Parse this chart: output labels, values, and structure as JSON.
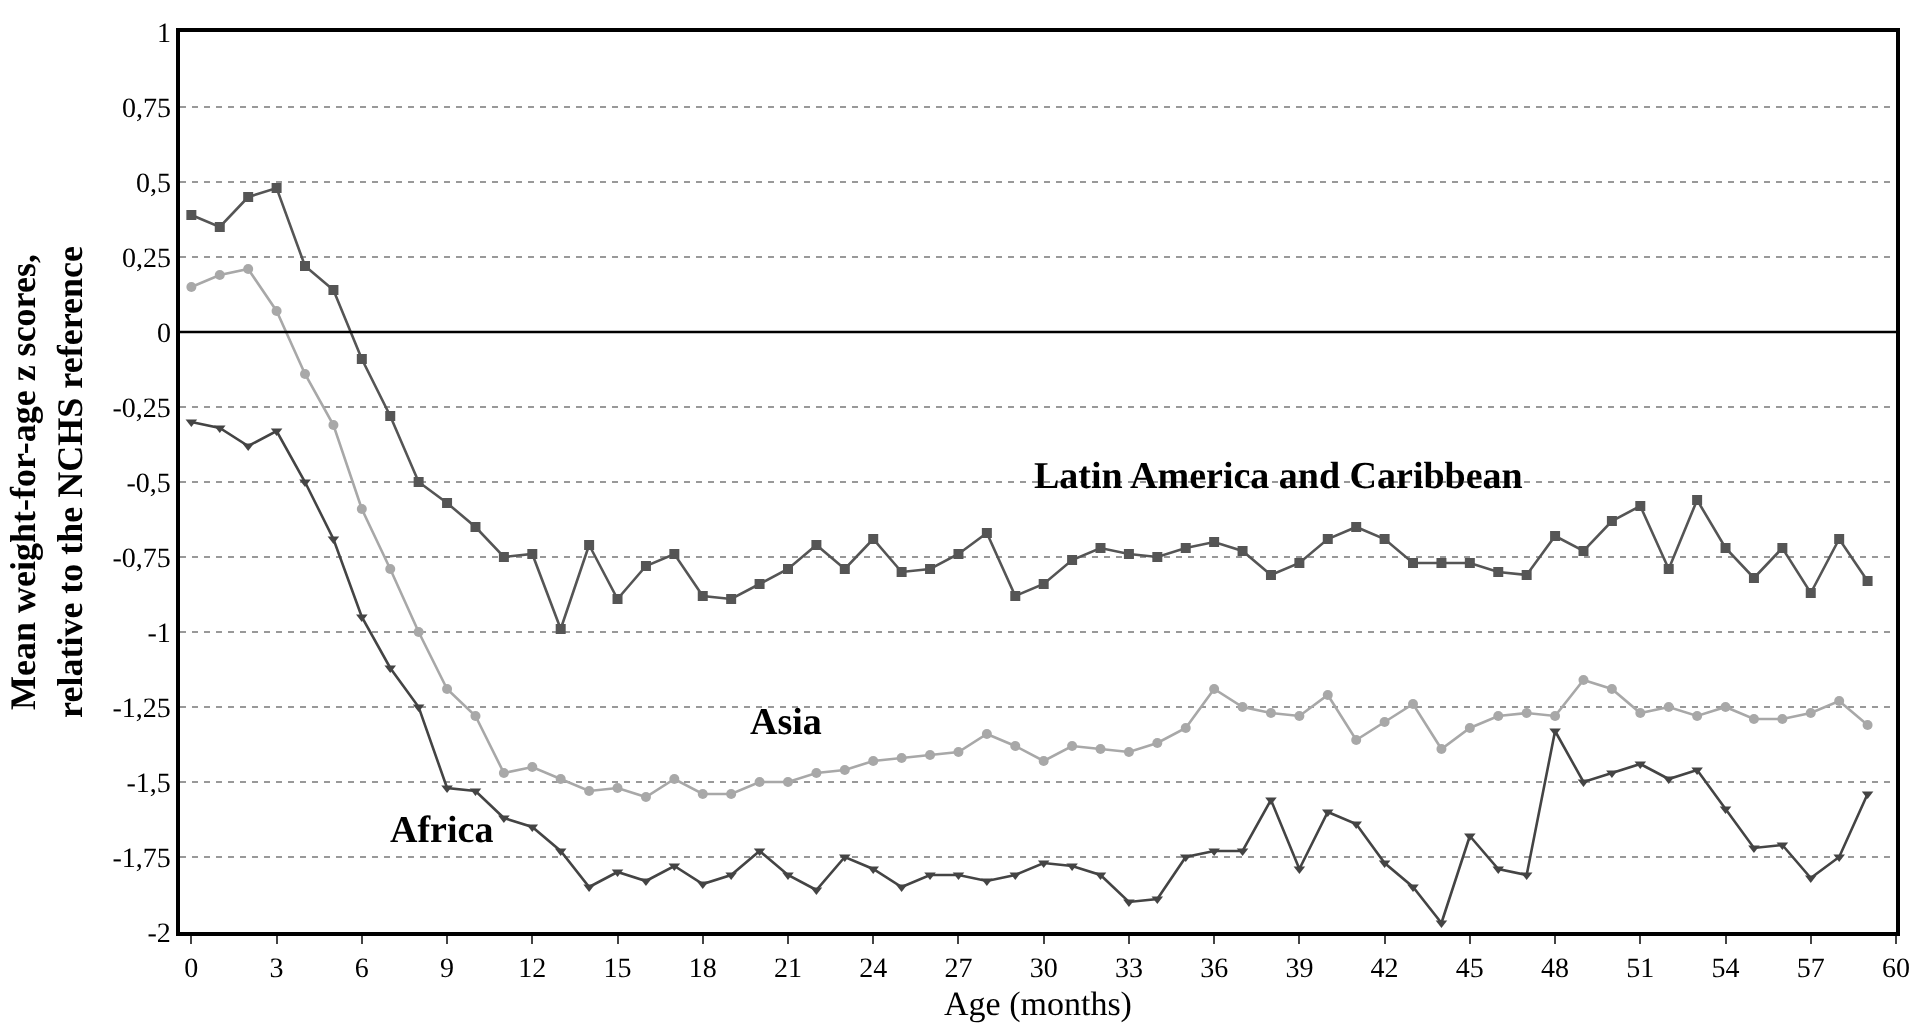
{
  "chart_data": {
    "type": "line",
    "xlabel": "Age (months)",
    "ylabel": "Mean weight-for-age z scores,\nrelative to the NCHS reference",
    "x": [
      0,
      1,
      2,
      3,
      4,
      5,
      6,
      7,
      8,
      9,
      10,
      11,
      12,
      13,
      14,
      15,
      16,
      17,
      18,
      19,
      20,
      21,
      22,
      23,
      24,
      25,
      26,
      27,
      28,
      29,
      30,
      31,
      32,
      33,
      34,
      35,
      36,
      37,
      38,
      39,
      40,
      41,
      42,
      43,
      44,
      45,
      46,
      47,
      48,
      49,
      50,
      51,
      52,
      53,
      54,
      55,
      56,
      57,
      58,
      59
    ],
    "series": [
      {
        "name": "Latin America and Caribbean",
        "color": "#555555",
        "marker": "square",
        "values": [
          0.39,
          0.35,
          0.45,
          0.48,
          0.22,
          0.14,
          -0.09,
          -0.28,
          -0.5,
          -0.57,
          -0.65,
          -0.75,
          -0.74,
          -0.99,
          -0.71,
          -0.89,
          -0.78,
          -0.74,
          -0.88,
          -0.89,
          -0.84,
          -0.79,
          -0.71,
          -0.79,
          -0.69,
          -0.8,
          -0.79,
          -0.74,
          -0.67,
          -0.88,
          -0.84,
          -0.76,
          -0.72,
          -0.74,
          -0.75,
          -0.72,
          -0.7,
          -0.73,
          -0.81,
          -0.77,
          -0.69,
          -0.65,
          -0.69,
          -0.77,
          -0.77,
          -0.77,
          -0.8,
          -0.81,
          -0.68,
          -0.73,
          -0.63,
          -0.58,
          -0.79,
          -0.56,
          -0.72,
          -0.82,
          -0.72,
          -0.87,
          -0.69,
          -0.83
        ]
      },
      {
        "name": "Asia",
        "color": "#a8a8a8",
        "marker": "circle",
        "values": [
          0.15,
          0.19,
          0.21,
          0.07,
          -0.14,
          -0.31,
          -0.59,
          -0.79,
          -1.0,
          -1.19,
          -1.28,
          -1.47,
          -1.45,
          -1.49,
          -1.53,
          -1.52,
          -1.55,
          -1.49,
          -1.54,
          -1.54,
          -1.5,
          -1.5,
          -1.47,
          -1.46,
          -1.43,
          -1.42,
          -1.41,
          -1.4,
          -1.34,
          -1.38,
          -1.43,
          -1.38,
          -1.39,
          -1.4,
          -1.37,
          -1.32,
          -1.19,
          -1.25,
          -1.27,
          -1.28,
          -1.21,
          -1.36,
          -1.3,
          -1.24,
          -1.39,
          -1.32,
          -1.28,
          -1.27,
          -1.28,
          -1.16,
          -1.19,
          -1.27,
          -1.25,
          -1.28,
          -1.25,
          -1.29,
          -1.29,
          -1.27,
          -1.23,
          -1.31
        ]
      },
      {
        "name": "Africa",
        "color": "#444444",
        "marker": "triangle",
        "values": [
          -0.3,
          -0.32,
          -0.38,
          -0.33,
          -0.5,
          -0.69,
          -0.95,
          -1.12,
          -1.25,
          -1.52,
          -1.53,
          -1.62,
          -1.65,
          -1.73,
          -1.85,
          -1.8,
          -1.83,
          -1.78,
          -1.84,
          -1.81,
          -1.73,
          -1.81,
          -1.86,
          -1.75,
          -1.79,
          -1.85,
          -1.81,
          -1.81,
          -1.83,
          -1.81,
          -1.77,
          -1.78,
          -1.81,
          -1.9,
          -1.89,
          -1.75,
          -1.73,
          -1.73,
          -1.56,
          -1.79,
          -1.6,
          -1.64,
          -1.77,
          -1.85,
          -1.97,
          -1.68,
          -1.79,
          -1.81,
          -1.33,
          -1.5,
          -1.47,
          -1.44,
          -1.49,
          -1.46,
          -1.59,
          -1.72,
          -1.71,
          -1.82,
          -1.75,
          -1.54
        ]
      }
    ],
    "xlim": [
      -0.4,
      60
    ],
    "xticks": [
      0,
      3,
      6,
      9,
      12,
      15,
      18,
      21,
      24,
      27,
      30,
      33,
      36,
      39,
      42,
      45,
      48,
      51,
      54,
      57,
      60
    ],
    "ylim": [
      -2,
      1
    ],
    "yticks": [
      {
        "value": 1,
        "label": "1"
      },
      {
        "value": 0.75,
        "label": "0,75"
      },
      {
        "value": 0.5,
        "label": "0,5"
      },
      {
        "value": 0.25,
        "label": "0,25"
      },
      {
        "value": 0,
        "label": "0"
      },
      {
        "value": -0.25,
        "label": "-0,25"
      },
      {
        "value": -0.5,
        "label": "-0,5"
      },
      {
        "value": -0.75,
        "label": "-0,75"
      },
      {
        "value": -1,
        "label": "-1"
      },
      {
        "value": -1.25,
        "label": "-1,25"
      },
      {
        "value": -1.5,
        "label": "-1,5"
      },
      {
        "value": -1.75,
        "label": "-1,75"
      },
      {
        "value": -2,
        "label": "-2"
      }
    ],
    "ref_lines": [
      {
        "axis": "y",
        "value": 0,
        "color": "#000000",
        "line_style": "solid"
      }
    ],
    "grid": "y",
    "legend": false,
    "line_style": "solid"
  }
}
